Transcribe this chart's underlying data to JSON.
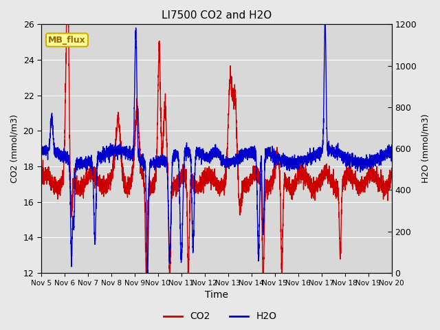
{
  "title": "LI7500 CO2 and H2O",
  "xlabel": "Time",
  "ylabel_left": "CO2 (mmol/m3)",
  "ylabel_right": "H2O (mmol/m3)",
  "co2_color": "#cc0000",
  "h2o_color": "#0000cc",
  "ylim_left": [
    12,
    26
  ],
  "ylim_right": [
    0,
    1200
  ],
  "yticks_left": [
    12,
    14,
    16,
    18,
    20,
    22,
    24,
    26
  ],
  "yticks_right": [
    0,
    200,
    400,
    600,
    800,
    1000,
    1200
  ],
  "x_tick_labels": [
    "Nov 5",
    "Nov 6",
    "Nov 7",
    "Nov 8",
    "Nov 9",
    "Nov 10",
    "Nov 11",
    "Nov 12",
    "Nov 13",
    "Nov 14",
    "Nov 15",
    "Nov 16",
    "Nov 17",
    "Nov 18",
    "Nov 19",
    "Nov 20"
  ],
  "figure_bg": "#e8e8e8",
  "plot_bg": "#d8d8d8",
  "grid_color": "#ffffff",
  "annotation_text": "MB_flux",
  "annotation_fg": "#996600",
  "annotation_bg": "#ffff99",
  "annotation_border": "#ccaa00",
  "line_width": 1.0
}
